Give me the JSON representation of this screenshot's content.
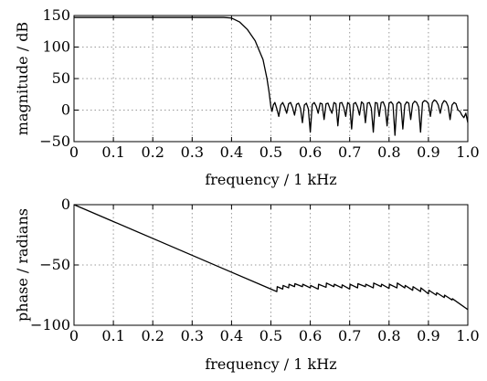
{
  "chart_data": [
    {
      "type": "line",
      "title": "",
      "xlabel": "frequency / 1 kHz",
      "ylabel": "magnitude / dB",
      "xlim": [
        0,
        1.0
      ],
      "ylim": [
        -50,
        150
      ],
      "grid": true,
      "x_ticks": [
        0,
        0.1,
        0.2,
        0.3,
        0.4,
        0.5,
        0.6,
        0.7,
        0.8,
        0.9,
        1.0
      ],
      "x_tick_labels": [
        "0",
        "0.1",
        "0.2",
        "0.3",
        "0.4",
        "0.5",
        "0.6",
        "0.7",
        "0.8",
        "0.9",
        "1.0"
      ],
      "y_ticks": [
        -50,
        0,
        50,
        100,
        150
      ],
      "y_tick_labels": [
        "−50",
        "0",
        "50",
        "100",
        "150"
      ],
      "series": [
        {
          "x": [
            0,
            0.05,
            0.1,
            0.15,
            0.2,
            0.25,
            0.3,
            0.35,
            0.38,
            0.4,
            0.42,
            0.44,
            0.46,
            0.47,
            0.48,
            0.485,
            0.49,
            0.495,
            0.5,
            0.503,
            0.506,
            0.51,
            0.515,
            0.52,
            0.525,
            0.53,
            0.535,
            0.54,
            0.545,
            0.55,
            0.555,
            0.56,
            0.565,
            0.57,
            0.575,
            0.58,
            0.585,
            0.59,
            0.595,
            0.6,
            0.605,
            0.61,
            0.615,
            0.62,
            0.625,
            0.63,
            0.635,
            0.64,
            0.645,
            0.65,
            0.655,
            0.66,
            0.665,
            0.67,
            0.675,
            0.68,
            0.685,
            0.69,
            0.695,
            0.7,
            0.705,
            0.71,
            0.715,
            0.72,
            0.725,
            0.73,
            0.735,
            0.74,
            0.745,
            0.75,
            0.755,
            0.76,
            0.765,
            0.77,
            0.775,
            0.78,
            0.785,
            0.79,
            0.795,
            0.8,
            0.805,
            0.81,
            0.815,
            0.82,
            0.825,
            0.83,
            0.835,
            0.84,
            0.845,
            0.85,
            0.855,
            0.86,
            0.865,
            0.87,
            0.875,
            0.88,
            0.885,
            0.89,
            0.895,
            0.9,
            0.905,
            0.91,
            0.915,
            0.92,
            0.925,
            0.93,
            0.935,
            0.94,
            0.945,
            0.95,
            0.955,
            0.96,
            0.965,
            0.97,
            0.975,
            0.98,
            0.985,
            0.99,
            0.995,
            1.0
          ],
          "y": [
            147,
            147,
            147,
            147,
            147,
            147,
            147,
            147,
            147,
            146,
            140,
            128,
            110,
            95,
            80,
            65,
            50,
            30,
            5,
            -2,
            8,
            12,
            2,
            -10,
            8,
            12,
            5,
            -5,
            10,
            12,
            4,
            -8,
            9,
            11,
            3,
            -20,
            8,
            11,
            2,
            -35,
            9,
            12,
            6,
            -5,
            11,
            10,
            -15,
            10,
            11,
            2,
            -5,
            12,
            10,
            -25,
            11,
            12,
            4,
            -10,
            12,
            9,
            -30,
            10,
            12,
            5,
            -8,
            13,
            10,
            -20,
            11,
            12,
            3,
            -35,
            12,
            11,
            -10,
            12,
            13,
            5,
            -25,
            11,
            13,
            9,
            -40,
            10,
            13,
            10,
            -30,
            8,
            13,
            11,
            -15,
            10,
            14,
            12,
            5,
            -35,
            12,
            15,
            14,
            10,
            -10,
            12,
            16,
            14,
            8,
            -5,
            10,
            15,
            13,
            6,
            -15,
            8,
            12,
            10,
            0,
            -2,
            -8,
            -12,
            -5,
            -20
          ]
        }
      ]
    },
    {
      "type": "line",
      "title": "",
      "xlabel": "frequency / 1 kHz",
      "ylabel": "phase / radians",
      "xlim": [
        0,
        1.0
      ],
      "ylim": [
        -100,
        0
      ],
      "grid": true,
      "x_ticks": [
        0,
        0.1,
        0.2,
        0.3,
        0.4,
        0.5,
        0.6,
        0.7,
        0.8,
        0.9,
        1.0
      ],
      "x_tick_labels": [
        "0",
        "0.1",
        "0.2",
        "0.3",
        "0.4",
        "0.5",
        "0.6",
        "0.7",
        "0.8",
        "0.9",
        "1.0"
      ],
      "y_ticks": [
        -100,
        -50,
        0
      ],
      "y_tick_labels": [
        "−100",
        "−50",
        "0"
      ],
      "series": [
        {
          "x": [
            0,
            0.1,
            0.2,
            0.3,
            0.4,
            0.5,
            0.515,
            0.516,
            0.53,
            0.531,
            0.545,
            0.546,
            0.56,
            0.561,
            0.58,
            0.581,
            0.6,
            0.601,
            0.62,
            0.621,
            0.64,
            0.641,
            0.66,
            0.661,
            0.68,
            0.681,
            0.7,
            0.701,
            0.72,
            0.721,
            0.74,
            0.741,
            0.76,
            0.761,
            0.78,
            0.781,
            0.8,
            0.801,
            0.82,
            0.821,
            0.84,
            0.841,
            0.86,
            0.861,
            0.88,
            0.881,
            0.9,
            0.901,
            0.92,
            0.921,
            0.94,
            0.941,
            0.96,
            0.961,
            1.0
          ],
          "y": [
            0,
            -14,
            -28,
            -42,
            -56,
            -70,
            -72.1,
            -68,
            -70,
            -67,
            -69,
            -66,
            -68,
            -65.5,
            -68,
            -66,
            -69,
            -67,
            -70,
            -66,
            -68.5,
            -65,
            -68,
            -66,
            -69,
            -66.5,
            -70,
            -66,
            -69,
            -65.5,
            -68,
            -66,
            -69,
            -65,
            -68,
            -66,
            -69.5,
            -66,
            -69,
            -65,
            -69,
            -67,
            -71,
            -68,
            -72,
            -69,
            -74,
            -71,
            -75,
            -73,
            -77,
            -75,
            -79,
            -78,
            -87
          ]
        }
      ]
    }
  ]
}
